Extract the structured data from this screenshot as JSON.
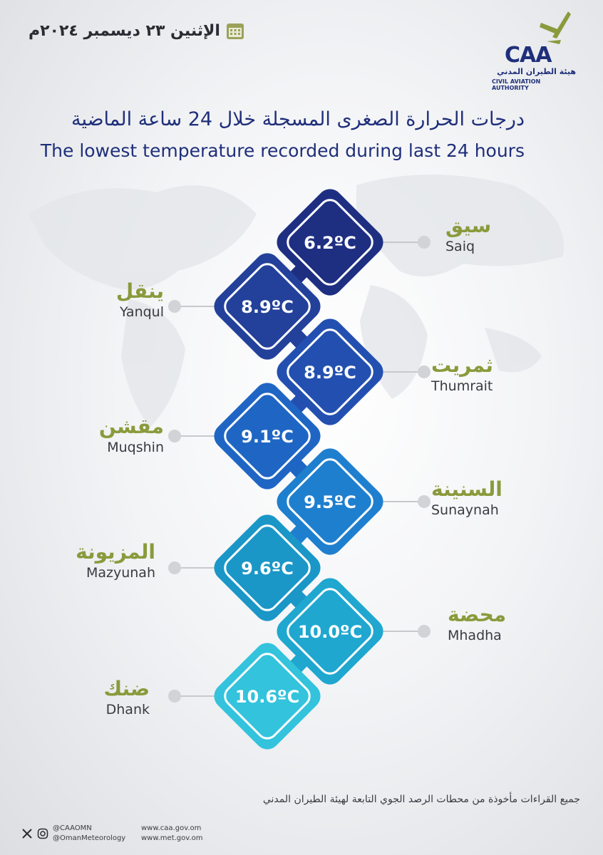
{
  "logo": {
    "wordmark": "CAA",
    "arabic_name": "هيئة الطيران المدني",
    "english_name": "CIVIL AVIATION AUTHORITY"
  },
  "date": {
    "text": "الإثنين ٢٣ ديسمبر ٢٠٢٤م"
  },
  "title": {
    "arabic": "درجات الحرارة الصغرى المسجلة خلال 24 ساعة الماضية",
    "english": "The lowest temperature recorded during last 24 hours"
  },
  "stations": [
    {
      "name_ar": "سيق",
      "name_en": "Saiq",
      "temp": "6.2ºC",
      "color": "#1e2f82"
    },
    {
      "name_ar": "ينقل",
      "name_en": "Yanqul",
      "temp": "8.9ºC",
      "color": "#23419a"
    },
    {
      "name_ar": "ثمريت",
      "name_en": "Thumrait",
      "temp": "8.9ºC",
      "color": "#2350b0"
    },
    {
      "name_ar": "مقشن",
      "name_en": "Muqshin",
      "temp": "9.1ºC",
      "color": "#1f66c4"
    },
    {
      "name_ar": "السنينة",
      "name_en": "Sunaynah",
      "temp": "9.5ºC",
      "color": "#1f7fcf"
    },
    {
      "name_ar": "المزيونة",
      "name_en": "Mazyunah",
      "temp": "9.6ºC",
      "color": "#1a97c7"
    },
    {
      "name_ar": "محضة",
      "name_en": "Mhadha",
      "temp": "10.0ºC",
      "color": "#1fa7cf"
    },
    {
      "name_ar": "ضنك",
      "name_en": "Dhank",
      "temp": "10.6ºC",
      "color": "#33c3dc"
    }
  ],
  "footer": {
    "note": "جميع القراءات مأخوذة من محطات الرصد الجوي التابعة لهيئة الطيران المدني"
  },
  "social": {
    "handle1": "@CAAOMN",
    "handle2": "@OmanMeteorology",
    "site1": "www.caa.gov.om",
    "site2": "www.met.gov.om"
  },
  "colors": {
    "title": "#1f2f7a",
    "station_ar": "#8a9a3c",
    "accent_green": "#8a9a3c"
  }
}
